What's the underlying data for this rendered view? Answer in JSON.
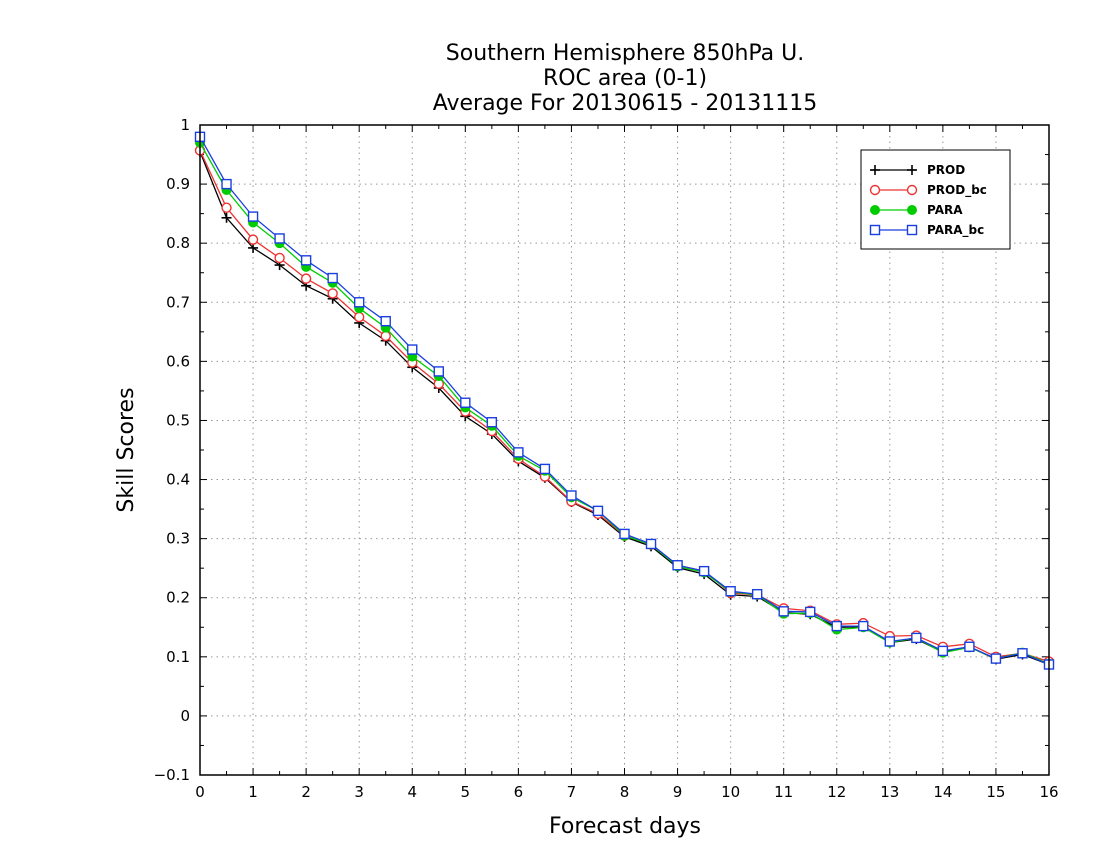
{
  "chart_data": {
    "type": "line",
    "title": [
      "Southern Hemisphere 850hPa U.",
      "ROC area (0-1)",
      "Average For 20130615 - 20131115"
    ],
    "xlabel": "Forecast days",
    "ylabel": "Skill Scores",
    "xlim": [
      0,
      16
    ],
    "ylim": [
      -0.1,
      1
    ],
    "xticks": [
      0,
      1,
      2,
      3,
      4,
      5,
      6,
      7,
      8,
      9,
      10,
      11,
      12,
      13,
      14,
      15,
      16
    ],
    "yticks": [
      -0.1,
      0,
      0.1,
      0.2,
      0.3,
      0.4,
      0.5,
      0.6,
      0.7,
      0.8,
      0.9,
      1
    ],
    "ytick_labels": [
      "−0.1",
      "0",
      "0.1",
      "0.2",
      "0.3",
      "0.4",
      "0.5",
      "0.6",
      "0.7",
      "0.8",
      "0.9",
      "1"
    ],
    "grid": true,
    "legend_position": "top-right",
    "x": [
      0,
      0.5,
      1,
      1.5,
      2,
      2.5,
      3,
      3.5,
      4,
      4.5,
      5,
      5.5,
      6,
      6.5,
      7,
      7.5,
      8,
      8.5,
      9,
      9.5,
      10,
      10.5,
      11,
      11.5,
      12,
      12.5,
      13,
      13.5,
      14,
      14.5,
      15,
      15.5,
      16
    ],
    "series": [
      {
        "name": "PROD",
        "color": "#000000",
        "marker": "plus",
        "values": [
          0.955,
          0.843,
          0.792,
          0.763,
          0.728,
          0.706,
          0.665,
          0.635,
          0.59,
          0.555,
          0.507,
          0.477,
          0.431,
          0.403,
          0.362,
          0.34,
          0.303,
          0.287,
          0.251,
          0.24,
          0.205,
          0.202,
          0.175,
          0.172,
          0.15,
          0.151,
          0.124,
          0.13,
          0.108,
          0.117,
          0.096,
          0.104,
          0.087
        ]
      },
      {
        "name": "PROD_bc",
        "color": "#ee3333",
        "marker": "circle-open",
        "values": [
          0.957,
          0.86,
          0.806,
          0.775,
          0.74,
          0.715,
          0.675,
          0.643,
          0.598,
          0.562,
          0.515,
          0.482,
          0.435,
          0.405,
          0.363,
          0.342,
          0.305,
          0.29,
          0.255,
          0.245,
          0.208,
          0.205,
          0.182,
          0.178,
          0.155,
          0.157,
          0.135,
          0.136,
          0.117,
          0.122,
          0.1,
          0.106,
          0.092
        ]
      },
      {
        "name": "PARA",
        "color": "#00cc00",
        "marker": "circle-filled",
        "values": [
          0.97,
          0.89,
          0.835,
          0.8,
          0.76,
          0.733,
          0.69,
          0.657,
          0.608,
          0.575,
          0.522,
          0.491,
          0.44,
          0.415,
          0.37,
          0.347,
          0.305,
          0.29,
          0.253,
          0.243,
          0.21,
          0.205,
          0.173,
          0.174,
          0.146,
          0.15,
          0.124,
          0.132,
          0.107,
          0.116,
          0.097,
          0.107,
          0.088
        ]
      },
      {
        "name": "PARA_bc",
        "color": "#1a3fe0",
        "marker": "square-open",
        "values": [
          0.98,
          0.9,
          0.845,
          0.808,
          0.771,
          0.741,
          0.7,
          0.668,
          0.62,
          0.583,
          0.53,
          0.497,
          0.446,
          0.418,
          0.373,
          0.347,
          0.308,
          0.291,
          0.255,
          0.245,
          0.211,
          0.206,
          0.177,
          0.176,
          0.152,
          0.152,
          0.126,
          0.132,
          0.11,
          0.117,
          0.097,
          0.106,
          0.087
        ]
      }
    ]
  }
}
